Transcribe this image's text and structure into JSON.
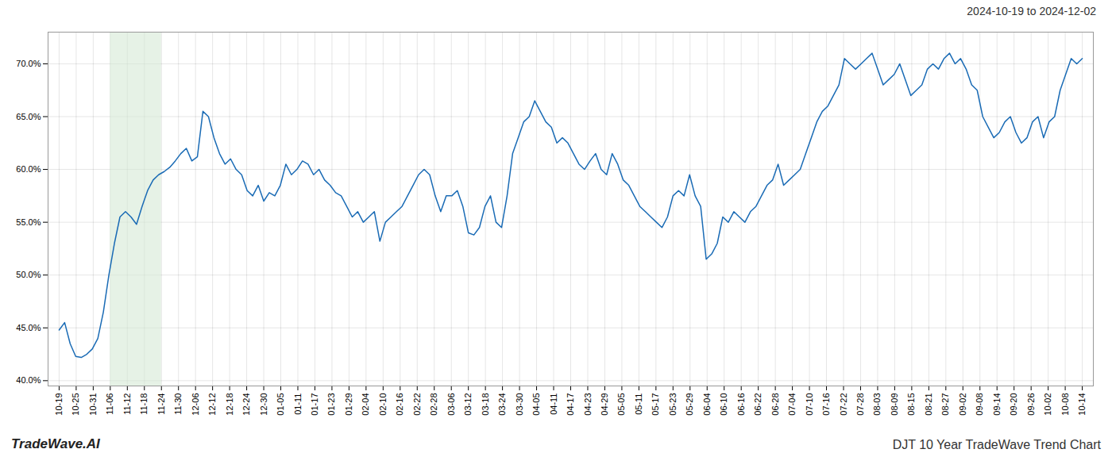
{
  "chart_data": {
    "type": "line",
    "title": "DJT 10 Year TradeWave Trend Chart",
    "subtitle": "2024-10-19 to 2024-12-02",
    "annotations": [
      "TradeWave.AI"
    ],
    "color": "#1a6bb5",
    "grid": true,
    "shaded_range": {
      "from": "11-06",
      "to": "11-24",
      "color": "#d5ead5"
    },
    "xlim": [
      -2,
      187
    ],
    "xticks": [
      {
        "value": 0,
        "label": "10-19"
      },
      {
        "value": 3.083333,
        "label": "10-25"
      },
      {
        "value": 6.166667,
        "label": "10-31"
      },
      {
        "value": 9.25,
        "label": "11-06"
      },
      {
        "value": 12.333333,
        "label": "11-12"
      },
      {
        "value": 15.416667,
        "label": "11-18"
      },
      {
        "value": 18.5,
        "label": "11-24"
      },
      {
        "value": 21.583333,
        "label": "11-30"
      },
      {
        "value": 24.666667,
        "label": "12-06"
      },
      {
        "value": 27.75,
        "label": "12-12"
      },
      {
        "value": 30.833333,
        "label": "12-18"
      },
      {
        "value": 33.916667,
        "label": "12-24"
      },
      {
        "value": 37,
        "label": "12-30"
      },
      {
        "value": 40.083333,
        "label": "01-05"
      },
      {
        "value": 43.166667,
        "label": "01-11"
      },
      {
        "value": 46.25,
        "label": "01-17"
      },
      {
        "value": 49.333333,
        "label": "01-23"
      },
      {
        "value": 52.416667,
        "label": "01-29"
      },
      {
        "value": 55.5,
        "label": "02-04"
      },
      {
        "value": 58.583333,
        "label": "02-10"
      },
      {
        "value": 61.666667,
        "label": "02-16"
      },
      {
        "value": 64.75,
        "label": "02-22"
      },
      {
        "value": 67.833333,
        "label": "02-28"
      },
      {
        "value": 70.916667,
        "label": "03-06"
      },
      {
        "value": 74,
        "label": "03-12"
      },
      {
        "value": 77.083333,
        "label": "03-18"
      },
      {
        "value": 80.166667,
        "label": "03-24"
      },
      {
        "value": 83.25,
        "label": "03-30"
      },
      {
        "value": 86.333333,
        "label": "04-05"
      },
      {
        "value": 89.416667,
        "label": "04-11"
      },
      {
        "value": 92.5,
        "label": "04-17"
      },
      {
        "value": 95.583333,
        "label": "04-23"
      },
      {
        "value": 98.666667,
        "label": "04-29"
      },
      {
        "value": 101.75,
        "label": "05-05"
      },
      {
        "value": 104.833333,
        "label": "05-11"
      },
      {
        "value": 107.916667,
        "label": "05-17"
      },
      {
        "value": 111,
        "label": "05-23"
      },
      {
        "value": 114.083333,
        "label": "05-29"
      },
      {
        "value": 117.166667,
        "label": "06-04"
      },
      {
        "value": 120.25,
        "label": "06-10"
      },
      {
        "value": 123.333333,
        "label": "06-16"
      },
      {
        "value": 126.416667,
        "label": "06-22"
      },
      {
        "value": 129.5,
        "label": "06-28"
      },
      {
        "value": 132.583333,
        "label": "07-04"
      },
      {
        "value": 135.666667,
        "label": "07-10"
      },
      {
        "value": 138.75,
        "label": "07-16"
      },
      {
        "value": 141.833333,
        "label": "07-22"
      },
      {
        "value": 144.916667,
        "label": "07-28"
      },
      {
        "value": 148,
        "label": "08-03"
      },
      {
        "value": 151.083333,
        "label": "08-09"
      },
      {
        "value": 154.166667,
        "label": "08-15"
      },
      {
        "value": 157.25,
        "label": "08-21"
      },
      {
        "value": 160.333333,
        "label": "08-27"
      },
      {
        "value": 163.416667,
        "label": "09-02"
      },
      {
        "value": 166.5,
        "label": "09-08"
      },
      {
        "value": 169.583333,
        "label": "09-14"
      },
      {
        "value": 172.666667,
        "label": "09-20"
      },
      {
        "value": 175.75,
        "label": "09-26"
      },
      {
        "value": 178.833333,
        "label": "10-02"
      },
      {
        "value": 181.916667,
        "label": "10-08"
      },
      {
        "value": 185,
        "label": "10-14"
      }
    ],
    "ylim": [
      39.5,
      73.0
    ],
    "yticks": [
      {
        "value": 40.0,
        "label": "40.0%"
      },
      {
        "value": 45.0,
        "label": "45.0%"
      },
      {
        "value": 50.0,
        "label": "50.0%"
      },
      {
        "value": 55.0,
        "label": "55.0%"
      },
      {
        "value": 60.0,
        "label": "60.0%"
      },
      {
        "value": 65.0,
        "label": "65.0%"
      },
      {
        "value": 70.0,
        "label": "70.0%"
      }
    ],
    "values": [
      44.8,
      45.5,
      43.5,
      42.3,
      42.2,
      42.5,
      43.0,
      44.0,
      46.5,
      50.0,
      53.0,
      55.5,
      56.0,
      55.5,
      54.8,
      56.5,
      58.0,
      59.0,
      59.5,
      59.8,
      60.2,
      60.8,
      61.5,
      62.0,
      60.8,
      61.2,
      65.5,
      65.0,
      63.0,
      61.5,
      60.5,
      61.0,
      60.0,
      59.5,
      58.0,
      57.5,
      58.5,
      57.0,
      57.8,
      57.5,
      58.5,
      60.5,
      59.5,
      60.0,
      60.8,
      60.5,
      59.5,
      60.0,
      59.0,
      58.5,
      57.8,
      57.5,
      56.5,
      55.5,
      56.0,
      55.0,
      55.5,
      56.0,
      53.2,
      55.0,
      55.5,
      56.0,
      56.5,
      57.5,
      58.5,
      59.5,
      60.0,
      59.5,
      57.5,
      56.0,
      57.5,
      57.5,
      58.0,
      56.5,
      54.0,
      53.8,
      54.5,
      56.5,
      57.5,
      55.0,
      54.5,
      57.5,
      61.5,
      63.0,
      64.5,
      65.0,
      66.5,
      65.5,
      64.5,
      64.0,
      62.5,
      63.0,
      62.5,
      61.5,
      60.5,
      60.0,
      60.8,
      61.5,
      60.0,
      59.5,
      61.5,
      60.5,
      59.0,
      58.5,
      57.5,
      56.5,
      56.0,
      55.5,
      55.0,
      54.5,
      55.5,
      57.5,
      58.0,
      57.5,
      59.5,
      57.5,
      56.5,
      51.5,
      52.0,
      53.0,
      55.5,
      55.0,
      56.0,
      55.5,
      55.0,
      56.0,
      56.5,
      57.5,
      58.5,
      59.0,
      60.5,
      58.5,
      59.0,
      59.5,
      60.0,
      61.5,
      63.0,
      64.5,
      65.5,
      66.0,
      67.0,
      68.0,
      70.5,
      70.0,
      69.5,
      70.0,
      70.5,
      71.0,
      69.5,
      68.0,
      68.5,
      69.0,
      70.0,
      68.5,
      67.0,
      67.5,
      68.0,
      69.5,
      70.0,
      69.5,
      70.5,
      71.0,
      70.0,
      70.5,
      69.5,
      68.0,
      67.5,
      65.0,
      64.0,
      63.0,
      63.5,
      64.5,
      65.0,
      63.5,
      62.5,
      63.0,
      64.5,
      65.0,
      63.0,
      64.5,
      65.0,
      67.5,
      69.0,
      70.5,
      70.0,
      70.5
    ]
  }
}
